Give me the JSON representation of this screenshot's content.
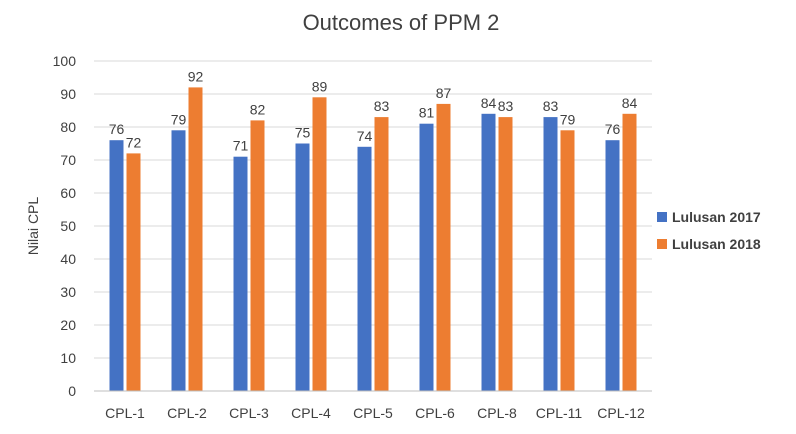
{
  "chart_data": {
    "type": "bar",
    "title": "Outcomes of PPM 2",
    "xlabel": "",
    "ylabel": "Nilai CPL",
    "ylim": [
      0,
      100
    ],
    "yticks": [
      0,
      10,
      20,
      30,
      40,
      50,
      60,
      70,
      80,
      90,
      100
    ],
    "categories": [
      "CPL-1",
      "CPL-2",
      "CPL-3",
      "CPL-4",
      "CPL-5",
      "CPL-6",
      "CPL-8",
      "CPL-11",
      "CPL-12"
    ],
    "series": [
      {
        "name": "Lulusan 2017",
        "color": "#4472C4",
        "values": [
          76,
          79,
          71,
          75,
          74,
          81,
          84,
          83,
          76
        ]
      },
      {
        "name": "Lulusan 2018",
        "color": "#ED7D31",
        "values": [
          72,
          92,
          82,
          89,
          83,
          87,
          83,
          79,
          84
        ]
      }
    ],
    "grid": true,
    "legend_position": "right"
  }
}
